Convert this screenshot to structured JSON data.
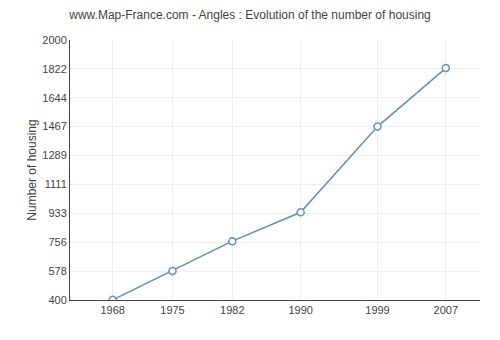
{
  "chart_data": {
    "type": "line",
    "title": "www.Map-France.com - Angles : Evolution of the number of housing",
    "ylabel": "Number of housing",
    "x": [
      1968,
      1975,
      1982,
      1990,
      1999,
      2007
    ],
    "values": [
      401,
      579,
      762,
      940,
      1467,
      1827
    ],
    "color": "#6090b8",
    "marker": "circle",
    "xlim": [
      1963,
      2011
    ],
    "xticks": [
      1968,
      1975,
      1982,
      1990,
      1999,
      2007
    ],
    "ylim": [
      400,
      2000
    ],
    "yticks": [
      400,
      578,
      756,
      933,
      1111,
      1289,
      1467,
      1644,
      1822,
      2000
    ],
    "grid": true
  }
}
